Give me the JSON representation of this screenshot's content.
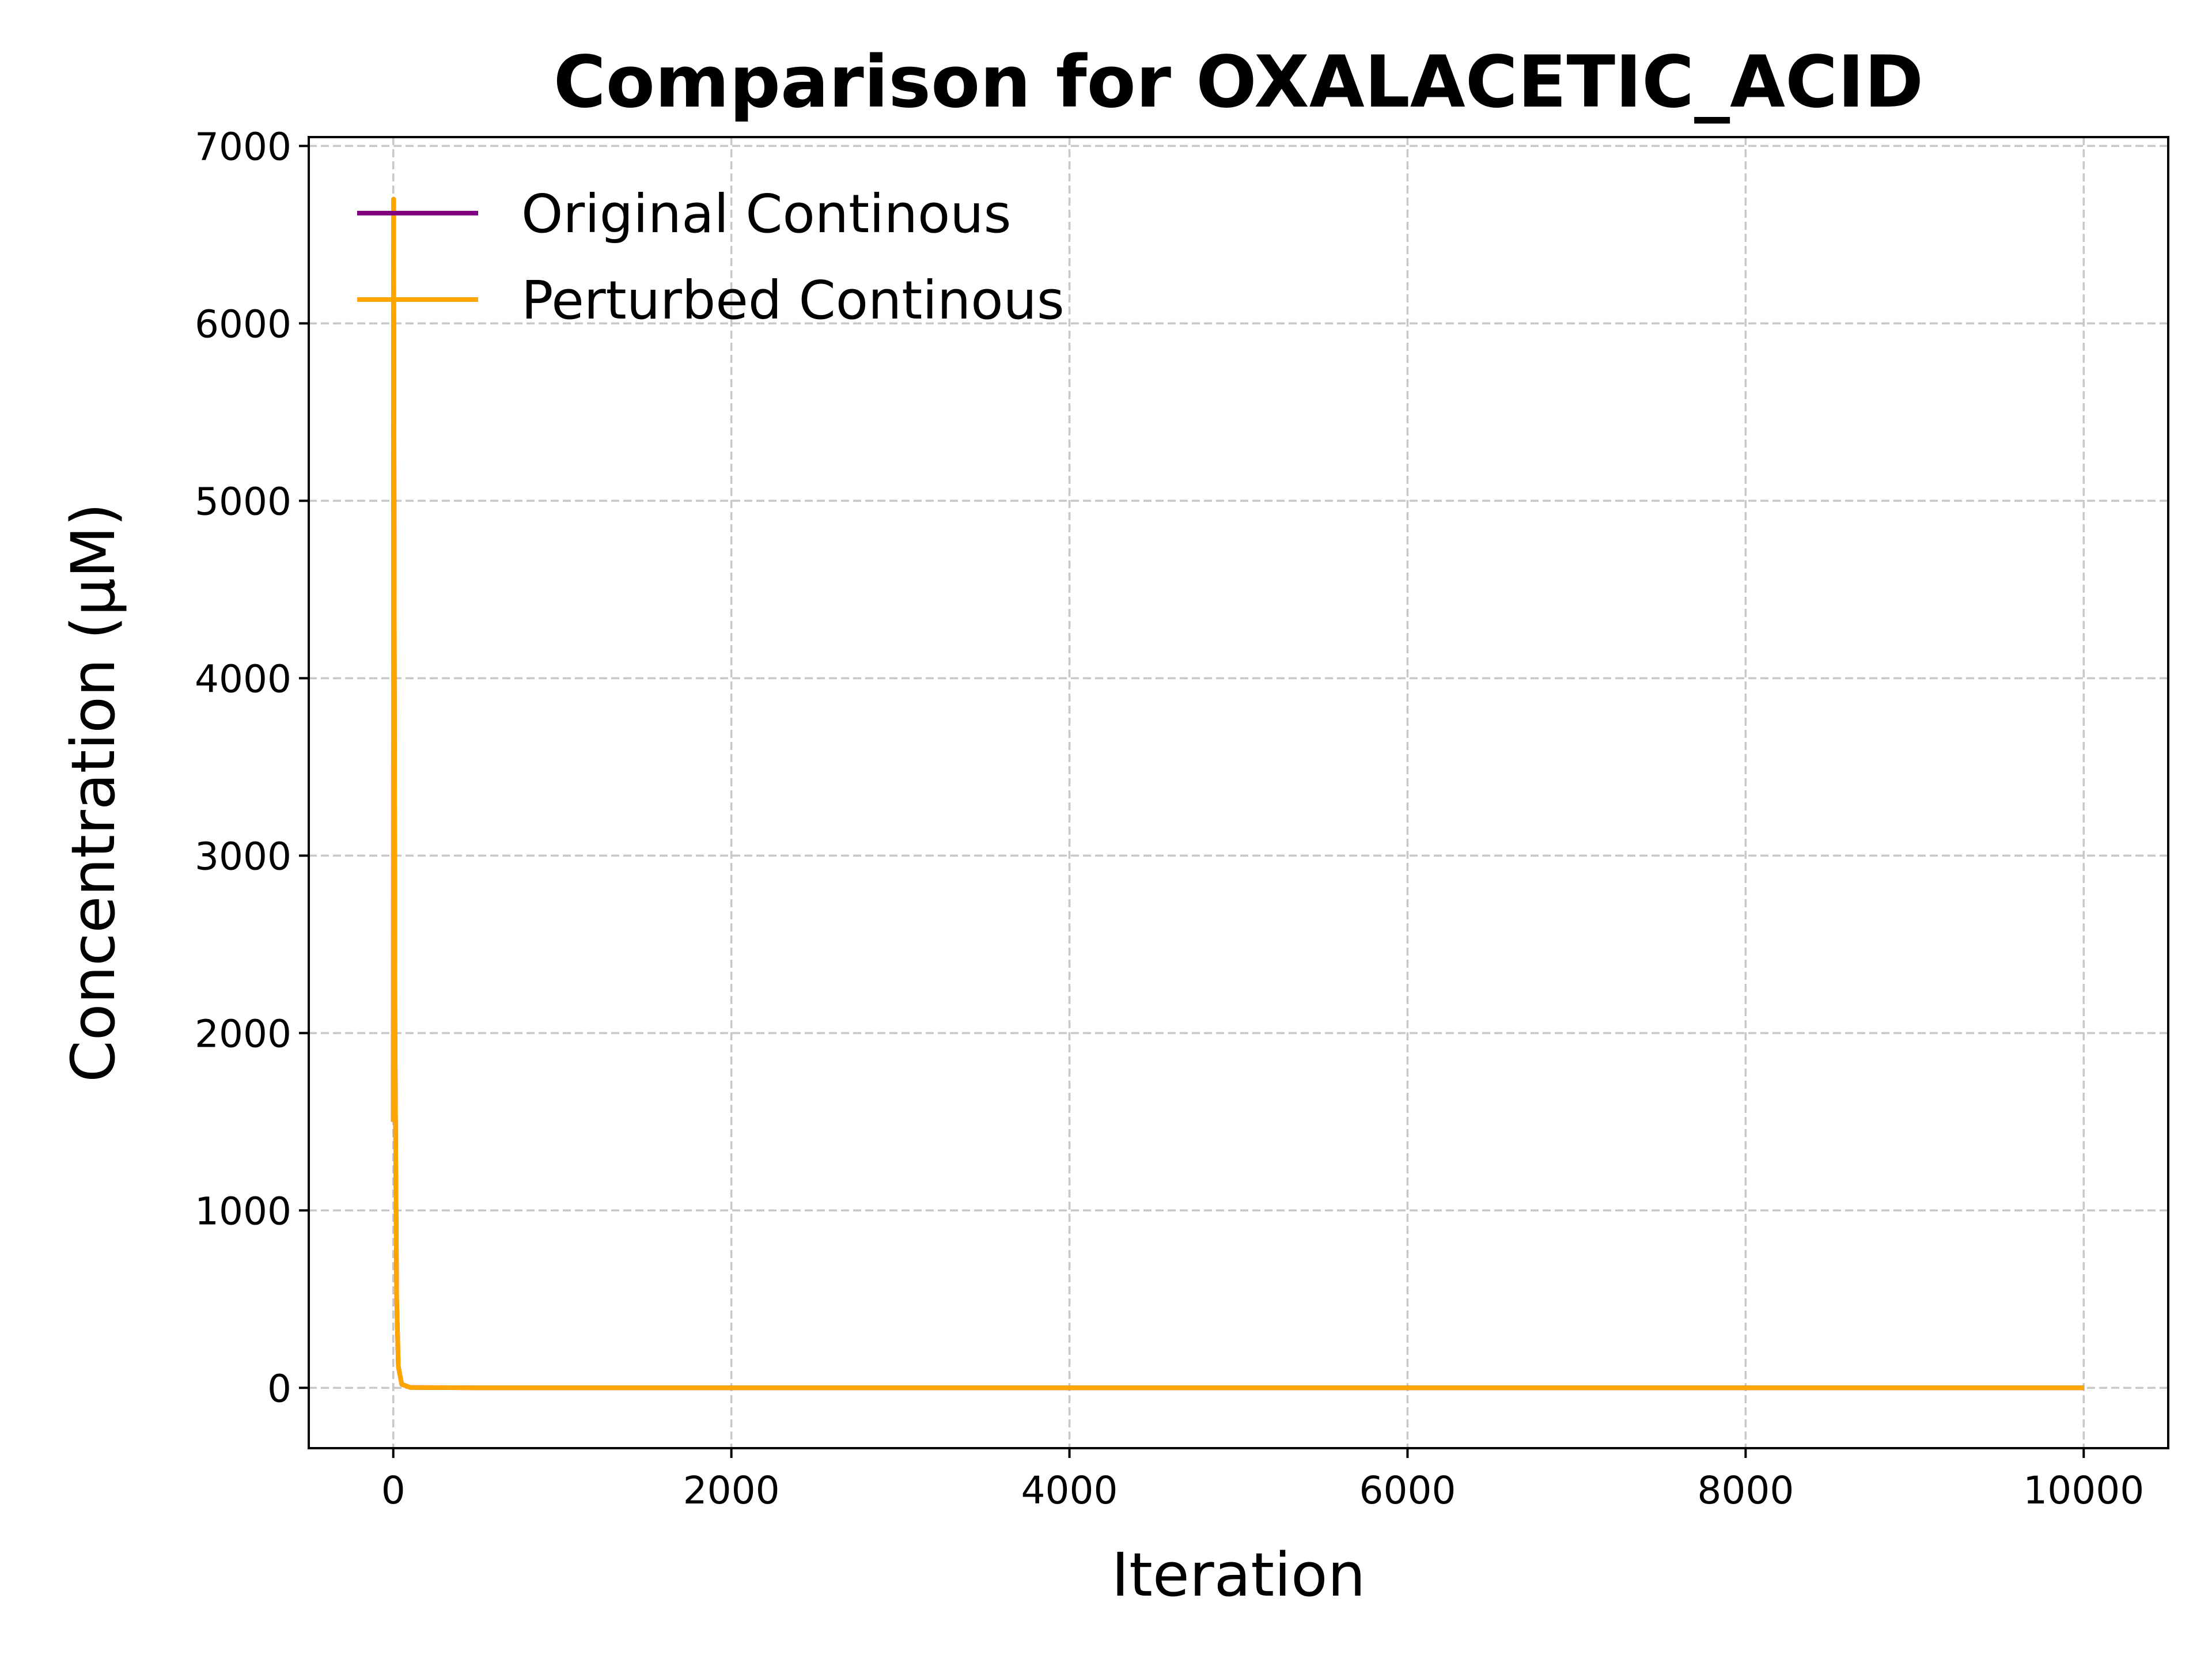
{
  "chart_data": {
    "type": "line",
    "title": "Comparison for OXALACETIC_ACID",
    "xlabel": "Iteration",
    "ylabel": "Concentration (μM)",
    "xlim": [
      -500,
      10500
    ],
    "ylim": [
      -340,
      7050
    ],
    "xticks": [
      0,
      2000,
      4000,
      6000,
      8000,
      10000
    ],
    "yticks": [
      0,
      1000,
      2000,
      3000,
      4000,
      5000,
      6000,
      7000
    ],
    "grid": true,
    "legend_position": "upper-left",
    "series": [
      {
        "name": "Original Continous",
        "color": "#800080",
        "x": [
          0,
          2,
          5,
          10,
          20,
          30,
          50,
          100,
          500,
          1000,
          2000,
          4000,
          6000,
          8000,
          10000
        ],
        "y": [
          1500,
          6700,
          5000,
          2000,
          500,
          120,
          20,
          2,
          0,
          0,
          0,
          0,
          0,
          0,
          0
        ]
      },
      {
        "name": "Perturbed Continous",
        "color": "#FFA500",
        "x": [
          0,
          2,
          5,
          10,
          20,
          30,
          50,
          100,
          500,
          1000,
          2000,
          4000,
          6000,
          8000,
          10000
        ],
        "y": [
          1500,
          6700,
          5000,
          2000,
          500,
          120,
          20,
          2,
          0,
          0,
          0,
          0,
          0,
          0,
          0
        ]
      }
    ]
  }
}
